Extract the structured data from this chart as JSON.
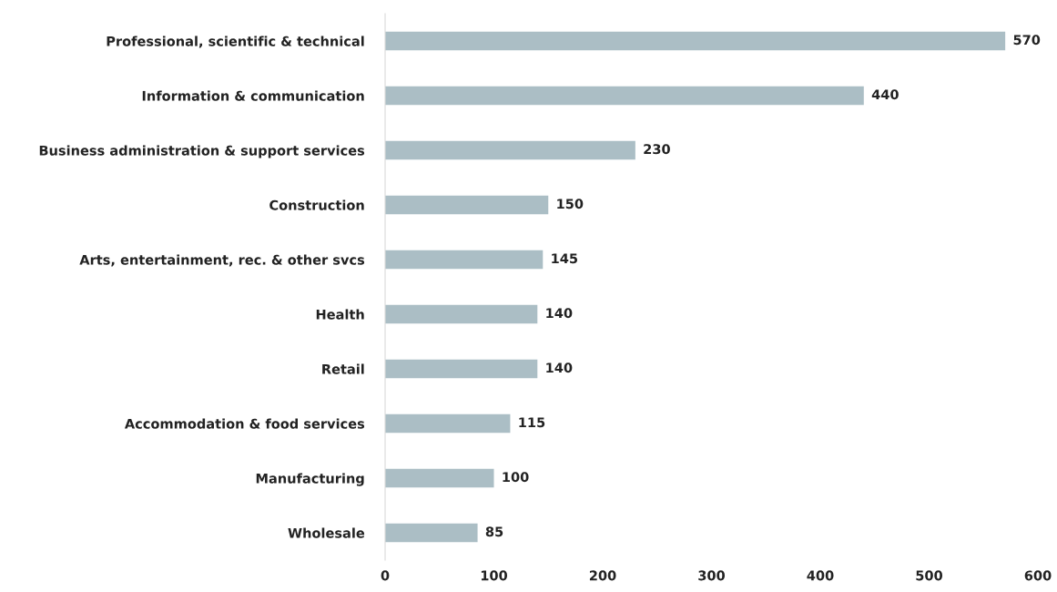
{
  "chart_data": {
    "type": "bar",
    "orientation": "horizontal",
    "categories": [
      "Professional, scientific & technical",
      "Information & communication",
      "Business administration & support services",
      "Construction",
      "Arts, entertainment, rec. & other svcs",
      "Health",
      "Retail",
      "Accommodation & food services",
      "Manufacturing",
      "Wholesale"
    ],
    "values": [
      570,
      440,
      230,
      150,
      145,
      140,
      140,
      115,
      100,
      85
    ],
    "color": "#abbec5",
    "xlim": [
      0,
      600
    ],
    "xticks": [
      0,
      100,
      200,
      300,
      400,
      500,
      600
    ],
    "grid": false,
    "data_labels": true
  }
}
